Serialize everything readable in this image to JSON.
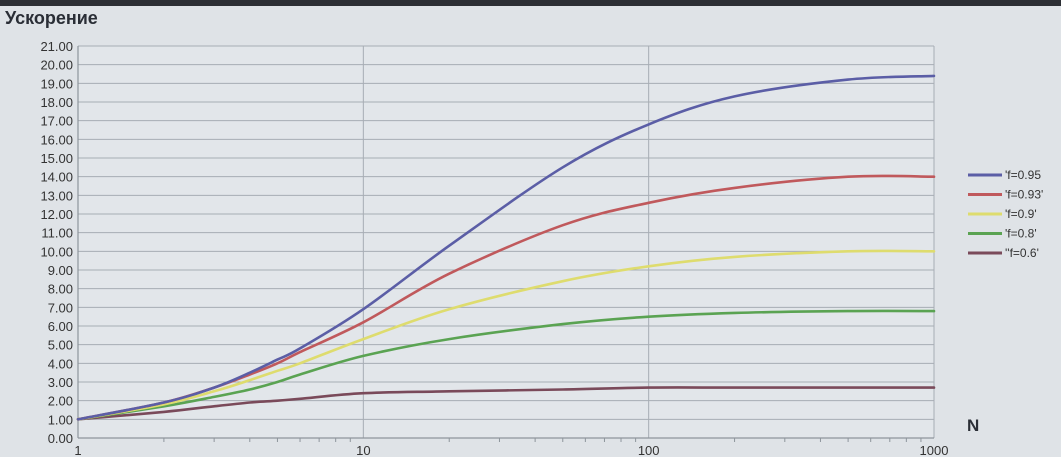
{
  "chart_data": {
    "type": "line",
    "title": "Ускорение",
    "xlabel": "N",
    "ylabel": "",
    "x_scale": "log",
    "xlim": [
      1,
      1000
    ],
    "ylim": [
      0,
      21
    ],
    "x_ticks": [
      1,
      10,
      100,
      1000
    ],
    "x_tick_labels": [
      "1",
      "10",
      "100",
      "1000"
    ],
    "y_ticks": [
      0,
      1,
      2,
      3,
      4,
      5,
      6,
      7,
      8,
      9,
      10,
      11,
      12,
      13,
      14,
      15,
      16,
      17,
      18,
      19,
      20,
      21
    ],
    "y_tick_labels": [
      "0.00",
      "1.00",
      "2.00",
      "3.00",
      "4.00",
      "5.00",
      "6.00",
      "7.00",
      "8.00",
      "9.00",
      "10.00",
      "11.00",
      "12.00",
      "13.00",
      "14.00",
      "15.00",
      "16.00",
      "17.00",
      "18.00",
      "19.00",
      "20.00",
      "21.00"
    ],
    "grid": true,
    "legend_position": "right",
    "x": [
      1,
      2,
      3,
      4,
      5,
      6,
      10,
      20,
      50,
      100,
      200,
      500,
      1000
    ],
    "series": [
      {
        "name": "'f=0.95",
        "color": "#5b5ea6",
        "values": [
          1.0,
          1.9,
          2.7,
          3.5,
          4.2,
          4.8,
          6.9,
          10.3,
          14.5,
          16.8,
          18.3,
          19.2,
          19.4
        ]
      },
      {
        "name": "'f=0.93'",
        "color": "#c0595c",
        "values": [
          1.0,
          1.9,
          2.7,
          3.4,
          4.0,
          4.6,
          6.2,
          8.8,
          11.4,
          12.6,
          13.4,
          14.0,
          14.0
        ]
      },
      {
        "name": "'f=0.9'",
        "color": "#dedc6e",
        "values": [
          1.0,
          1.8,
          2.5,
          3.1,
          3.6,
          4.0,
          5.3,
          6.9,
          8.4,
          9.2,
          9.7,
          10.0,
          10.0
        ]
      },
      {
        "name": "'f=0.8'",
        "color": "#5aa352",
        "values": [
          1.0,
          1.7,
          2.2,
          2.6,
          3.0,
          3.4,
          4.4,
          5.3,
          6.1,
          6.5,
          6.7,
          6.8,
          6.8
        ]
      },
      {
        "name": "''f=0.6'",
        "color": "#7a4a5a",
        "values": [
          1.0,
          1.4,
          1.7,
          1.9,
          2.0,
          2.1,
          2.4,
          2.5,
          2.6,
          2.7,
          2.7,
          2.7,
          2.7
        ]
      }
    ]
  }
}
